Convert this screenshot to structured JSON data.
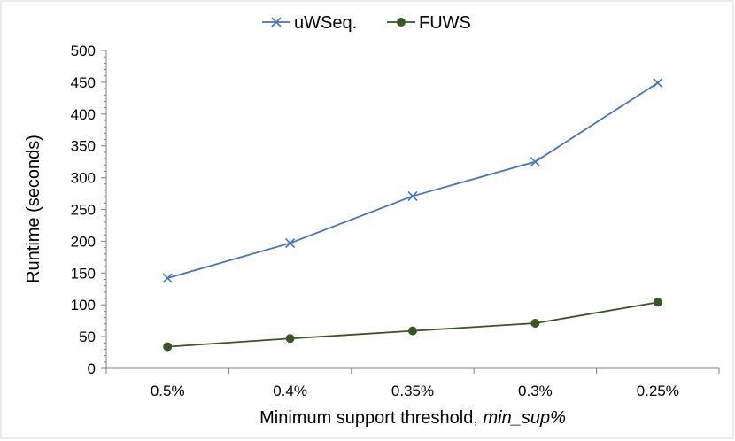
{
  "chart_data": {
    "type": "line",
    "title": "",
    "xlabel_main": "Minimum support threshold, ",
    "xlabel_italic": "min_sup%",
    "ylabel": "Runtime (seconds)",
    "categories": [
      "0.5%",
      "0.4%",
      "0.35%",
      "0.3%",
      "0.25%"
    ],
    "ylim": [
      0,
      500
    ],
    "yticks": [
      0,
      50,
      100,
      150,
      200,
      250,
      300,
      350,
      400,
      450,
      500
    ],
    "grid": false,
    "legend_position": "top",
    "series": [
      {
        "name": "uWSeq.",
        "marker": "x",
        "color": "#4472C4",
        "values": [
          142,
          197,
          271,
          325,
          449
        ]
      },
      {
        "name": "FUWS",
        "marker": "circle",
        "color": "#375623",
        "values": [
          34,
          47,
          59,
          71,
          104
        ]
      }
    ]
  }
}
